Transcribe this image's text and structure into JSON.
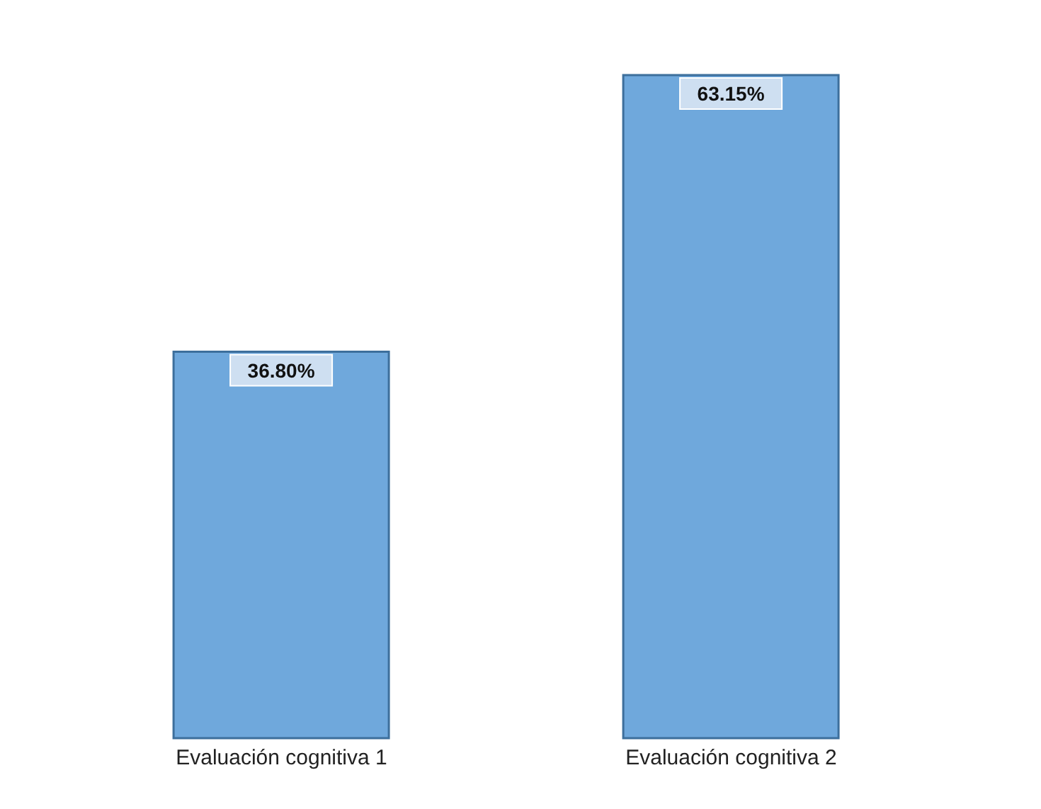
{
  "chart_data": {
    "type": "bar",
    "categories": [
      "Evaluación cognitiva 1",
      "Evaluación cognitiva 2"
    ],
    "values": [
      36.8,
      63.15
    ],
    "value_labels": [
      "36.80%",
      "63.15%"
    ],
    "color": "#6fa8dc"
  }
}
